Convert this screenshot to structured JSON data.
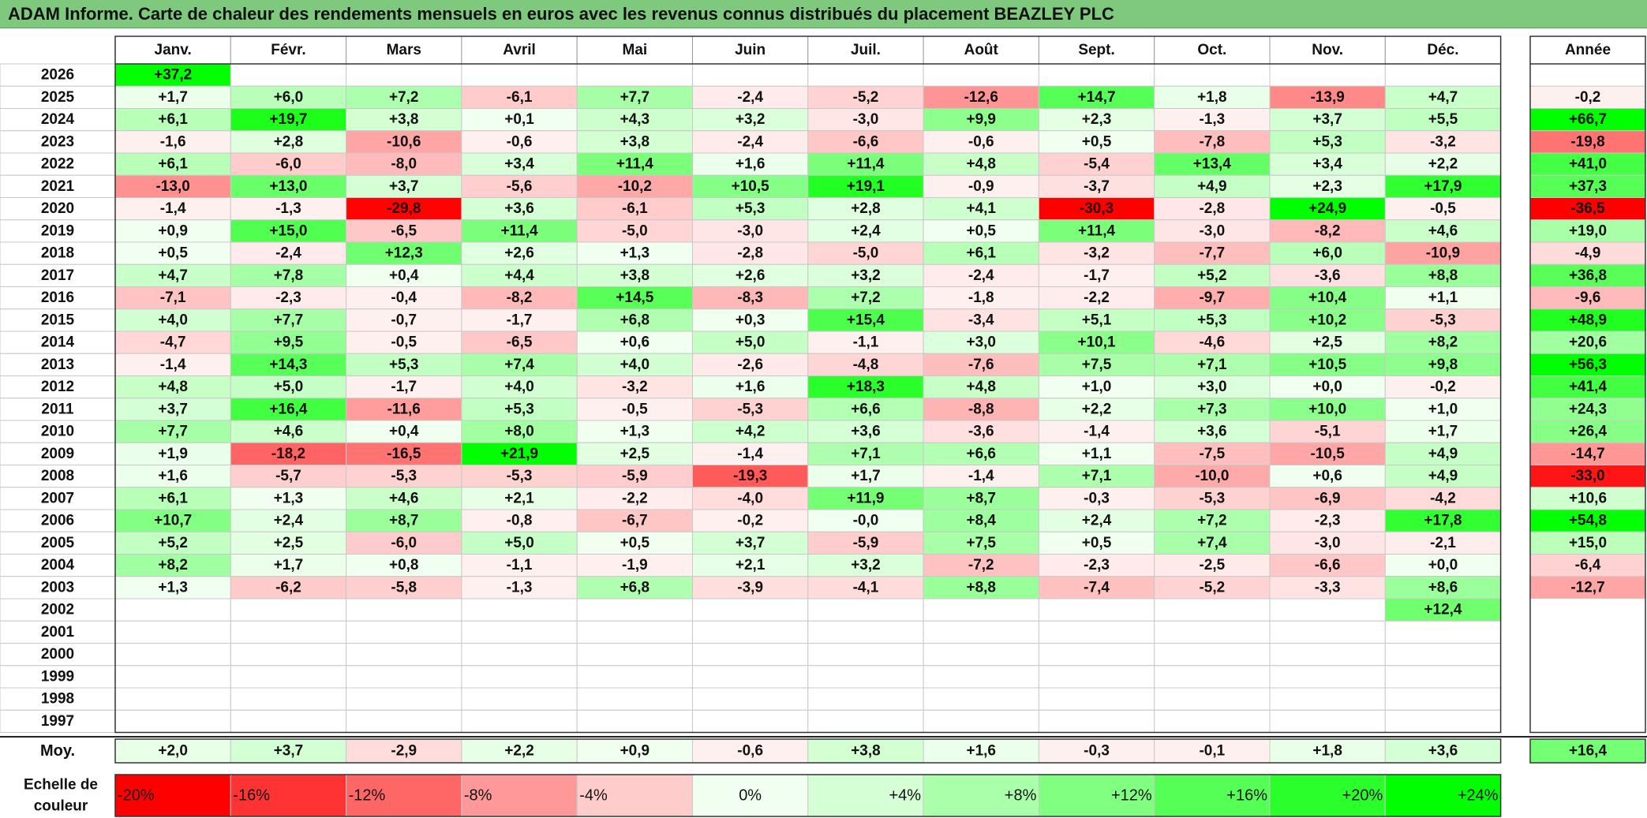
{
  "title": "ADAM Informe. Carte de chaleur des rendements mensuels en euros avec les revenus connus distribués du placement BEAZLEY PLC",
  "chart_data": {
    "type": "heatmap",
    "months": [
      "Janv.",
      "Févr.",
      "Mars",
      "Avril",
      "Mai",
      "Juin",
      "Juil.",
      "Août",
      "Sept.",
      "Oct.",
      "Nov.",
      "Déc."
    ],
    "year_header": "Année",
    "rows": [
      {
        "year": "2026",
        "values": [
          "+37,2",
          "",
          "",
          "",
          "",
          "",
          "",
          "",
          "",
          "",
          "",
          ""
        ],
        "annual": ""
      },
      {
        "year": "2025",
        "values": [
          "+1,7",
          "+6,0",
          "+7,2",
          "-6,1",
          "+7,7",
          "-2,4",
          "-5,2",
          "-12,6",
          "+14,7",
          "+1,8",
          "-13,9",
          "+4,7"
        ],
        "annual": "-0,2"
      },
      {
        "year": "2024",
        "values": [
          "+6,1",
          "+19,7",
          "+3,8",
          "+0,1",
          "+4,3",
          "+3,2",
          "-3,0",
          "+9,9",
          "+2,3",
          "-1,3",
          "+3,7",
          "+5,5"
        ],
        "annual": "+66,7"
      },
      {
        "year": "2023",
        "values": [
          "-1,6",
          "+2,8",
          "-10,6",
          "-0,6",
          "+3,8",
          "-2,4",
          "-6,6",
          "-0,6",
          "+0,5",
          "-7,8",
          "+5,3",
          "-3,2"
        ],
        "annual": "-19,8"
      },
      {
        "year": "2022",
        "values": [
          "+6,1",
          "-6,0",
          "-8,0",
          "+3,4",
          "+11,4",
          "+1,6",
          "+11,4",
          "+4,8",
          "-5,4",
          "+13,4",
          "+3,4",
          "+2,2"
        ],
        "annual": "+41,0"
      },
      {
        "year": "2021",
        "values": [
          "-13,0",
          "+13,0",
          "+3,7",
          "-5,6",
          "-10,2",
          "+10,5",
          "+19,1",
          "-0,9",
          "-3,7",
          "+4,9",
          "+2,3",
          "+17,9"
        ],
        "annual": "+37,3"
      },
      {
        "year": "2020",
        "values": [
          "-1,4",
          "-1,3",
          "-29,8",
          "+3,6",
          "-6,1",
          "+5,3",
          "+2,8",
          "+4,1",
          "-30,3",
          "-2,8",
          "+24,9",
          "-0,5"
        ],
        "annual": "-36,5"
      },
      {
        "year": "2019",
        "values": [
          "+0,9",
          "+15,0",
          "-6,5",
          "+11,4",
          "-5,0",
          "-3,0",
          "+2,4",
          "+0,5",
          "+11,4",
          "-3,0",
          "-8,2",
          "+4,6"
        ],
        "annual": "+19,0"
      },
      {
        "year": "2018",
        "values": [
          "+0,5",
          "-2,4",
          "+12,3",
          "+2,6",
          "+1,3",
          "-2,8",
          "-5,0",
          "+6,1",
          "-3,2",
          "-7,7",
          "+6,0",
          "-10,9"
        ],
        "annual": "-4,9"
      },
      {
        "year": "2017",
        "values": [
          "+4,7",
          "+7,8",
          "+0,4",
          "+4,4",
          "+3,8",
          "+2,6",
          "+3,2",
          "-2,4",
          "-1,7",
          "+5,2",
          "-3,6",
          "+8,8"
        ],
        "annual": "+36,8"
      },
      {
        "year": "2016",
        "values": [
          "-7,1",
          "-2,3",
          "-0,4",
          "-8,2",
          "+14,5",
          "-8,3",
          "+7,2",
          "-1,8",
          "-2,2",
          "-9,7",
          "+10,4",
          "+1,1"
        ],
        "annual": "-9,6"
      },
      {
        "year": "2015",
        "values": [
          "+4,0",
          "+7,7",
          "-0,7",
          "-1,7",
          "+6,8",
          "+0,3",
          "+15,4",
          "-3,4",
          "+5,1",
          "+5,3",
          "+10,2",
          "-5,3"
        ],
        "annual": "+48,9"
      },
      {
        "year": "2014",
        "values": [
          "-4,7",
          "+9,5",
          "-0,5",
          "-6,5",
          "+0,6",
          "+5,0",
          "-1,1",
          "+3,0",
          "+10,1",
          "-4,6",
          "+2,5",
          "+8,2"
        ],
        "annual": "+20,6"
      },
      {
        "year": "2013",
        "values": [
          "-1,4",
          "+14,3",
          "+5,3",
          "+7,4",
          "+4,0",
          "-2,6",
          "-4,8",
          "-7,6",
          "+7,5",
          "+7,1",
          "+10,5",
          "+9,8"
        ],
        "annual": "+56,3"
      },
      {
        "year": "2012",
        "values": [
          "+4,8",
          "+5,0",
          "-1,7",
          "+4,0",
          "-3,2",
          "+1,6",
          "+18,3",
          "+4,8",
          "+1,0",
          "+3,0",
          "+0,0",
          "-0,2"
        ],
        "annual": "+41,4"
      },
      {
        "year": "2011",
        "values": [
          "+3,7",
          "+16,4",
          "-11,6",
          "+5,3",
          "-0,5",
          "-5,3",
          "+6,6",
          "-8,8",
          "+2,2",
          "+7,3",
          "+10,0",
          "+1,0"
        ],
        "annual": "+24,3"
      },
      {
        "year": "2010",
        "values": [
          "+7,7",
          "+4,6",
          "+0,4",
          "+8,0",
          "+1,3",
          "+4,2",
          "+3,6",
          "-3,6",
          "-1,4",
          "+3,6",
          "-5,1",
          "+1,7"
        ],
        "annual": "+26,4"
      },
      {
        "year": "2009",
        "values": [
          "+1,9",
          "-18,2",
          "-16,5",
          "+21,9",
          "+2,5",
          "-1,4",
          "+7,1",
          "+6,6",
          "+1,1",
          "-7,5",
          "-10,5",
          "+4,9"
        ],
        "annual": "-14,7"
      },
      {
        "year": "2008",
        "values": [
          "+1,6",
          "-5,7",
          "-5,3",
          "-5,3",
          "-5,9",
          "-19,3",
          "+1,7",
          "-1,4",
          "+7,1",
          "-10,0",
          "+0,6",
          "+4,9"
        ],
        "annual": "-33,0"
      },
      {
        "year": "2007",
        "values": [
          "+6,1",
          "+1,3",
          "+4,6",
          "+2,1",
          "-2,2",
          "-4,0",
          "+11,9",
          "+8,7",
          "-0,3",
          "-5,3",
          "-6,9",
          "-4,2"
        ],
        "annual": "+10,6"
      },
      {
        "year": "2006",
        "values": [
          "+10,7",
          "+2,4",
          "+8,7",
          "-0,8",
          "-6,7",
          "-0,2",
          "-0,0",
          "+8,4",
          "+2,4",
          "+7,2",
          "-2,3",
          "+17,8"
        ],
        "annual": "+54,8"
      },
      {
        "year": "2005",
        "values": [
          "+5,2",
          "+2,5",
          "-6,0",
          "+5,0",
          "+0,5",
          "+3,7",
          "-5,9",
          "+7,5",
          "+0,5",
          "+7,4",
          "-3,0",
          "-2,1"
        ],
        "annual": "+15,0"
      },
      {
        "year": "2004",
        "values": [
          "+8,2",
          "+1,7",
          "+0,8",
          "-1,1",
          "-1,9",
          "+2,1",
          "+3,2",
          "-7,2",
          "-2,3",
          "-2,5",
          "-6,6",
          "+0,0"
        ],
        "annual": "-6,4"
      },
      {
        "year": "2003",
        "values": [
          "+1,3",
          "-6,2",
          "-5,8",
          "-1,3",
          "+6,8",
          "-3,9",
          "-4,1",
          "+8,8",
          "-7,4",
          "-5,2",
          "-3,3",
          "+8,6"
        ],
        "annual": "-12,7"
      },
      {
        "year": "2002",
        "values": [
          "",
          "",
          "",
          "",
          "",
          "",
          "",
          "",
          "",
          "",
          "",
          "+12,4"
        ],
        "annual": ""
      },
      {
        "year": "2001",
        "values": [
          "",
          "",
          "",
          "",
          "",
          "",
          "",
          "",
          "",
          "",
          "",
          ""
        ],
        "annual": ""
      },
      {
        "year": "2000",
        "values": [
          "",
          "",
          "",
          "",
          "",
          "",
          "",
          "",
          "",
          "",
          "",
          ""
        ],
        "annual": ""
      },
      {
        "year": "1999",
        "values": [
          "",
          "",
          "",
          "",
          "",
          "",
          "",
          "",
          "",
          "",
          "",
          ""
        ],
        "annual": ""
      },
      {
        "year": "1998",
        "values": [
          "",
          "",
          "",
          "",
          "",
          "",
          "",
          "",
          "",
          "",
          "",
          ""
        ],
        "annual": ""
      },
      {
        "year": "1997",
        "values": [
          "",
          "",
          "",
          "",
          "",
          "",
          "",
          "",
          "",
          "",
          "",
          ""
        ],
        "annual": ""
      }
    ],
    "average": {
      "label": "Moy.",
      "values": [
        "+2,0",
        "+3,7",
        "-2,9",
        "+2,2",
        "+0,9",
        "-0,6",
        "+3,8",
        "+1,6",
        "-0,3",
        "-0,1",
        "+1,8",
        "+3,6"
      ],
      "annual": "+16,4"
    },
    "scale": {
      "label_line1": "Echelle de",
      "label_line2": "couleur",
      "stops": [
        "-20%",
        "-16%",
        "-12%",
        "-8%",
        "-4%",
        "0%",
        "+4%",
        "+8%",
        "+12%",
        "+16%",
        "+20%",
        "+24%"
      ]
    },
    "colors": {
      "max_negative": "#ff0000",
      "neutral": "#ffffff",
      "max_positive": "#00ff00",
      "title_bar": "#7fc97f"
    }
  }
}
